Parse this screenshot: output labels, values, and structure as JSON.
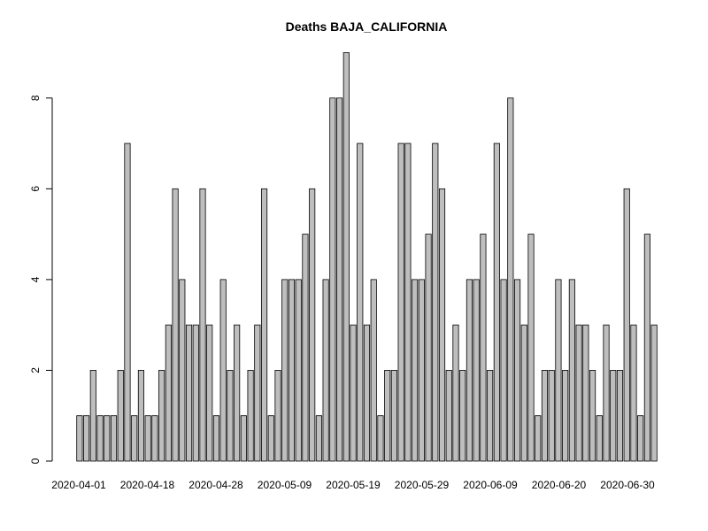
{
  "chart_data": {
    "type": "bar",
    "title": "Deaths BAJA_CALIFORNIA",
    "xlabel": "",
    "ylabel": "",
    "ylim": [
      0,
      9
    ],
    "y_ticks": [
      0,
      2,
      4,
      6,
      8
    ],
    "grid": false,
    "x_tick_labels": [
      "2020-04-01",
      "2020-04-18",
      "2020-04-28",
      "2020-05-09",
      "2020-05-19",
      "2020-05-29",
      "2020-06-09",
      "2020-06-20",
      "2020-06-30"
    ],
    "values": [
      1,
      1,
      2,
      1,
      1,
      1,
      2,
      7,
      1,
      2,
      1,
      1,
      2,
      3,
      6,
      4,
      3,
      3,
      6,
      3,
      1,
      4,
      2,
      3,
      1,
      2,
      3,
      6,
      1,
      2,
      4,
      4,
      4,
      5,
      6,
      1,
      4,
      8,
      8,
      9,
      3,
      7,
      3,
      4,
      1,
      2,
      2,
      7,
      7,
      4,
      4,
      5,
      7,
      6,
      2,
      3,
      2,
      4,
      4,
      5,
      2,
      7,
      4,
      8,
      4,
      3,
      5,
      1,
      2,
      2,
      4,
      2,
      4,
      3,
      3,
      2,
      1,
      3,
      2,
      2,
      6,
      3,
      1,
      5,
      3
    ]
  }
}
